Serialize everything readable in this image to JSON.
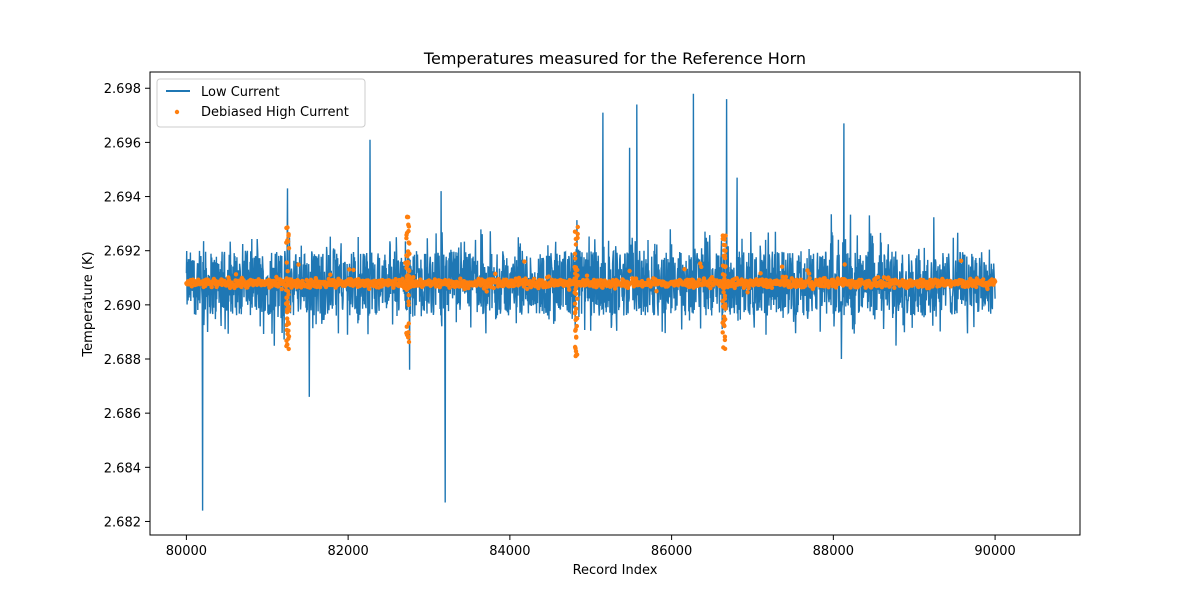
{
  "chart_data": {
    "type": "line",
    "title": "Temperatures measured for the Reference Horn",
    "xlabel": "Record Index",
    "ylabel": "Temperature (K)",
    "xlim": [
      79550,
      91050
    ],
    "ylim": [
      2.6815,
      2.6986
    ],
    "xticks": [
      80000,
      82000,
      84000,
      86000,
      88000,
      90000
    ],
    "xtick_labels": [
      "80000",
      "82000",
      "84000",
      "86000",
      "88000",
      "90000"
    ],
    "yticks": [
      2.682,
      2.684,
      2.686,
      2.688,
      2.69,
      2.692,
      2.694,
      2.696,
      2.698
    ],
    "ytick_labels": [
      "2.682",
      "2.684",
      "2.686",
      "2.688",
      "2.690",
      "2.692",
      "2.694",
      "2.696",
      "2.698"
    ],
    "legend_position": "top-left",
    "colors": {
      "low": "#1f77b4",
      "high": "#ff7f0e"
    },
    "series": [
      {
        "name": "Low Current",
        "kind": "line",
        "baseline": 2.6908,
        "noise_amplitude": 0.0012,
        "x_range": [
          80000,
          90000
        ],
        "spikes": [
          {
            "x": 80200,
            "y": 2.6824
          },
          {
            "x": 81250,
            "y": 2.6943
          },
          {
            "x": 81520,
            "y": 2.6866
          },
          {
            "x": 82270,
            "y": 2.6961
          },
          {
            "x": 82760,
            "y": 2.694
          },
          {
            "x": 82760,
            "y": 2.6876
          },
          {
            "x": 83150,
            "y": 2.6942
          },
          {
            "x": 83200,
            "y": 2.6827
          },
          {
            "x": 85150,
            "y": 2.6971
          },
          {
            "x": 85480,
            "y": 2.6958
          },
          {
            "x": 85570,
            "y": 2.6974
          },
          {
            "x": 86270,
            "y": 2.6978
          },
          {
            "x": 86680,
            "y": 2.6976
          },
          {
            "x": 86810,
            "y": 2.6947
          },
          {
            "x": 88130,
            "y": 2.6967
          },
          {
            "x": 88100,
            "y": 2.688
          }
        ]
      },
      {
        "name": "Debiased High Current",
        "kind": "scatter",
        "baseline": 2.6908,
        "noise_amplitude": 0.0002,
        "x_range": [
          80000,
          90000
        ],
        "event_clusters": [
          {
            "x": 81250,
            "y_min": 2.6882,
            "y_max": 2.6929
          },
          {
            "x": 82740,
            "y_min": 2.6886,
            "y_max": 2.6933
          },
          {
            "x": 84820,
            "y_min": 2.6881,
            "y_max": 2.6929
          },
          {
            "x": 86650,
            "y_min": 2.6883,
            "y_max": 2.6929
          }
        ]
      }
    ]
  }
}
